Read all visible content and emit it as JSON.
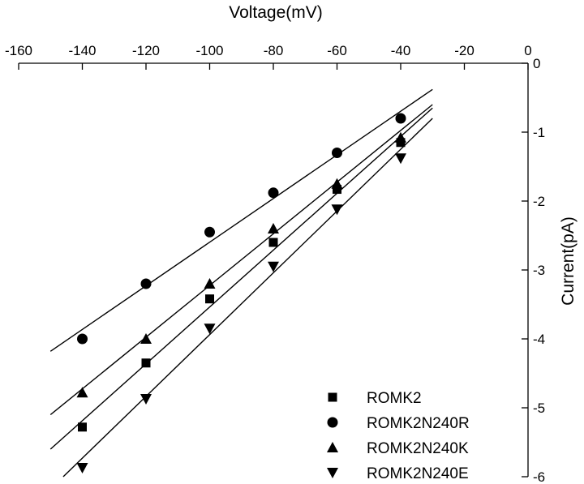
{
  "chart_data": {
    "type": "scatter",
    "title": "",
    "xlabel": "Voltage(mV)",
    "ylabel": "Current(pA)",
    "xlim": [
      -160,
      0
    ],
    "ylim": [
      -6,
      0
    ],
    "x_ticks": [
      -160,
      -140,
      -120,
      -100,
      -80,
      -60,
      -40,
      -20,
      0
    ],
    "y_ticks": [
      0,
      -1,
      -2,
      -3,
      -4,
      -5,
      -6
    ],
    "x_axis_position": "top",
    "y_axis_position": "right",
    "grid": false,
    "legend_position": "bottom-right",
    "series": [
      {
        "name": "ROMK2",
        "marker": "square",
        "x": [
          -140,
          -120,
          -100,
          -80,
          -60,
          -40
        ],
        "y": [
          -5.28,
          -4.35,
          -3.42,
          -2.6,
          -1.83,
          -1.15
        ],
        "fit": {
          "x_range": [
            -150,
            -30
          ],
          "y_range": [
            -5.6,
            -0.65
          ]
        }
      },
      {
        "name": "ROMK2N240R",
        "marker": "circle",
        "x": [
          -140,
          -120,
          -100,
          -80,
          -60,
          -40
        ],
        "y": [
          -4.0,
          -3.2,
          -2.45,
          -1.88,
          -1.3,
          -0.8
        ],
        "fit": {
          "x_range": [
            -150,
            -30
          ],
          "y_range": [
            -4.18,
            -0.38
          ]
        }
      },
      {
        "name": "ROMK2N240K",
        "marker": "triangle-up",
        "x": [
          -140,
          -120,
          -100,
          -80,
          -60,
          -40
        ],
        "y": [
          -4.78,
          -4.0,
          -3.2,
          -2.4,
          -1.75,
          -1.08
        ],
        "fit": {
          "x_range": [
            -150,
            -30
          ],
          "y_range": [
            -5.1,
            -0.6
          ]
        }
      },
      {
        "name": "ROMK2N240E",
        "marker": "triangle-down",
        "x": [
          -140,
          -120,
          -100,
          -80,
          -60,
          -40
        ],
        "y": [
          -5.87,
          -4.87,
          -3.85,
          -2.95,
          -2.12,
          -1.38
        ],
        "fit": {
          "x_range": [
            -146,
            -30
          ],
          "y_range": [
            -6.0,
            -0.8
          ]
        }
      }
    ]
  },
  "colors": {
    "background": "#ffffff",
    "ink": "#000000"
  }
}
